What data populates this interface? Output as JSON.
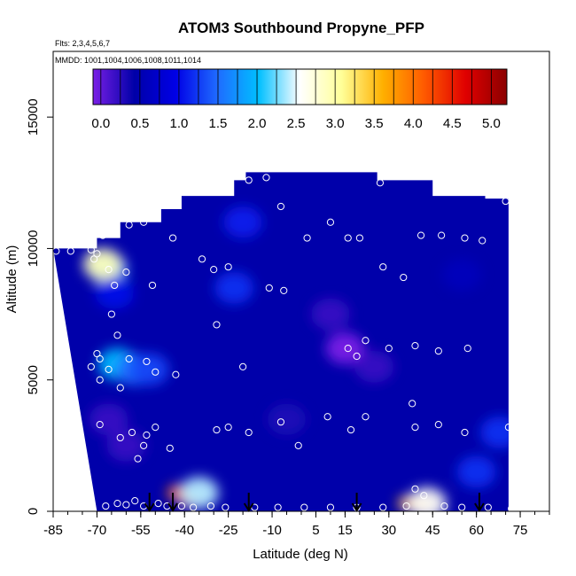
{
  "chart_data": {
    "type": "heatmap",
    "title": "ATOM3 Southbound Propyne_PFP",
    "subtitle_flights": "Flts: 2,3,4,5,6,7",
    "subtitle_dates": "MMDD: 1001,1004,1006,1008,1011,1014",
    "xlabel": "Latitude (deg N)",
    "ylabel": "Altitude (m)",
    "xlim": [
      -85,
      85
    ],
    "ylim": [
      0,
      17500
    ],
    "x_ticks": [
      "-85",
      "-70",
      "-55",
      "-40",
      "-25",
      "-10",
      "5",
      "15",
      "30",
      "45",
      "60",
      "75"
    ],
    "x_tick_values": [
      -85,
      -70,
      -55,
      -40,
      -25,
      -10,
      5,
      15,
      30,
      45,
      60,
      75
    ],
    "y_ticks": [
      "0",
      "5000",
      "10000",
      "15000"
    ],
    "y_tick_values": [
      0,
      5000,
      10000,
      15000
    ],
    "colorbar": {
      "ticks": [
        "0.0",
        "0.5",
        "1.0",
        "1.5",
        "2.0",
        "2.5",
        "3.0",
        "3.5",
        "4.0",
        "4.5",
        "5.0"
      ],
      "tick_values": [
        0.0,
        0.5,
        1.0,
        1.5,
        2.0,
        2.5,
        3.0,
        3.5,
        4.0,
        4.5,
        5.0
      ],
      "range": [
        -0.1,
        5.2
      ],
      "colors": [
        "#7a1fe6",
        "#0000a8",
        "#0000e6",
        "#1f6bff",
        "#00bfff",
        "#ffffff",
        "#ffff99",
        "#ffb000",
        "#ff5a00",
        "#e00000",
        "#8b0000"
      ]
    },
    "field_blobs": [
      {
        "lat": -66,
        "alt": 9200,
        "value": 1.7
      },
      {
        "lat": -68,
        "alt": 9400,
        "value": 2.9
      },
      {
        "lat": -64,
        "alt": 8300,
        "value": 1.0
      },
      {
        "lat": -63,
        "alt": 5600,
        "value": 2.0
      },
      {
        "lat": -57,
        "alt": 5400,
        "value": 1.5
      },
      {
        "lat": -52,
        "alt": 5400,
        "value": 1.3
      },
      {
        "lat": -66,
        "alt": 3500,
        "value": 0.2
      },
      {
        "lat": -60,
        "alt": 2500,
        "value": 0.2
      },
      {
        "lat": -42,
        "alt": 700,
        "value": 4.0
      },
      {
        "lat": -38,
        "alt": 400,
        "value": 4.6
      },
      {
        "lat": -35,
        "alt": 700,
        "value": 2.4
      },
      {
        "lat": 40,
        "alt": 250,
        "value": 4.9
      },
      {
        "lat": 37,
        "alt": 300,
        "value": 3.6
      },
      {
        "lat": 43,
        "alt": 300,
        "value": 2.6
      },
      {
        "lat": -23,
        "alt": 8500,
        "value": 1.2
      },
      {
        "lat": -20,
        "alt": 11000,
        "value": 1.1
      },
      {
        "lat": 15,
        "alt": 6200,
        "value": -0.1
      },
      {
        "lat": 10,
        "alt": 7500,
        "value": 0.2
      },
      {
        "lat": 25,
        "alt": 5500,
        "value": 0.2
      },
      {
        "lat": 60,
        "alt": 1500,
        "value": 1.2
      },
      {
        "lat": 68,
        "alt": 3000,
        "value": 1.2
      },
      {
        "lat": -5,
        "alt": 3500,
        "value": 0.3
      },
      {
        "lat": 55,
        "alt": 9000,
        "value": 0.6
      }
    ],
    "profile_arrows_lat": [
      -52,
      -44,
      -18,
      19,
      61
    ],
    "samples": [
      {
        "lat": -84,
        "alt": 9900
      },
      {
        "lat": -79,
        "alt": 9900
      },
      {
        "lat": -72,
        "alt": 9950
      },
      {
        "lat": -70,
        "alt": 9800
      },
      {
        "lat": -71,
        "alt": 9600
      },
      {
        "lat": -66,
        "alt": 9200
      },
      {
        "lat": -60,
        "alt": 9100
      },
      {
        "lat": -64,
        "alt": 8600
      },
      {
        "lat": -68,
        "alt": 10500
      },
      {
        "lat": -59,
        "alt": 10900
      },
      {
        "lat": -54,
        "alt": 11000
      },
      {
        "lat": -44,
        "alt": 10400
      },
      {
        "lat": -51,
        "alt": 8600
      },
      {
        "lat": -65,
        "alt": 7500
      },
      {
        "lat": -63,
        "alt": 6700
      },
      {
        "lat": -70,
        "alt": 6000
      },
      {
        "lat": -69,
        "alt": 5800
      },
      {
        "lat": -72,
        "alt": 5500
      },
      {
        "lat": -66,
        "alt": 5400
      },
      {
        "lat": -59,
        "alt": 5800
      },
      {
        "lat": -53,
        "alt": 5700
      },
      {
        "lat": -50,
        "alt": 5300
      },
      {
        "lat": -69,
        "alt": 5000
      },
      {
        "lat": -62,
        "alt": 4700
      },
      {
        "lat": -43,
        "alt": 5200
      },
      {
        "lat": -69,
        "alt": 3300
      },
      {
        "lat": -58,
        "alt": 3000
      },
      {
        "lat": -62,
        "alt": 2800
      },
      {
        "lat": -50,
        "alt": 3200
      },
      {
        "lat": -53,
        "alt": 2900
      },
      {
        "lat": -45,
        "alt": 2400
      },
      {
        "lat": -54,
        "alt": 2500
      },
      {
        "lat": -56,
        "alt": 2000
      },
      {
        "lat": -29,
        "alt": 3100
      },
      {
        "lat": -25,
        "alt": 3200
      },
      {
        "lat": -18,
        "alt": 3000
      },
      {
        "lat": -7,
        "alt": 3400
      },
      {
        "lat": -1,
        "alt": 2500
      },
      {
        "lat": 9,
        "alt": 3600
      },
      {
        "lat": 17,
        "alt": 3100
      },
      {
        "lat": 22,
        "alt": 3600
      },
      {
        "lat": 38,
        "alt": 4100
      },
      {
        "lat": 39,
        "alt": 3200
      },
      {
        "lat": 47,
        "alt": 3300
      },
      {
        "lat": 56,
        "alt": 3000
      },
      {
        "lat": 71,
        "alt": 3200
      },
      {
        "lat": -34,
        "alt": 9600
      },
      {
        "lat": -30,
        "alt": 9200
      },
      {
        "lat": -25,
        "alt": 9300
      },
      {
        "lat": -11,
        "alt": 8500
      },
      {
        "lat": -6,
        "alt": 8400
      },
      {
        "lat": -29,
        "alt": 7100
      },
      {
        "lat": -20,
        "alt": 5500
      },
      {
        "lat": 16,
        "alt": 6200
      },
      {
        "lat": 22,
        "alt": 6500
      },
      {
        "lat": 19,
        "alt": 5900
      },
      {
        "lat": 30,
        "alt": 6200
      },
      {
        "lat": 39,
        "alt": 6300
      },
      {
        "lat": 47,
        "alt": 6100
      },
      {
        "lat": 57,
        "alt": 6200
      },
      {
        "lat": 28,
        "alt": 9300
      },
      {
        "lat": 35,
        "alt": 8900
      },
      {
        "lat": -7,
        "alt": 11600
      },
      {
        "lat": 2,
        "alt": 10400
      },
      {
        "lat": 10,
        "alt": 11000
      },
      {
        "lat": 16,
        "alt": 10400
      },
      {
        "lat": 20,
        "alt": 10400
      },
      {
        "lat": 41,
        "alt": 10500
      },
      {
        "lat": 48,
        "alt": 10500
      },
      {
        "lat": 56,
        "alt": 10400
      },
      {
        "lat": 62,
        "alt": 10300
      },
      {
        "lat": 70,
        "alt": 11800
      },
      {
        "lat": 27,
        "alt": 12500
      },
      {
        "lat": -18,
        "alt": 12600
      },
      {
        "lat": -12,
        "alt": 12700
      },
      {
        "lat": -67,
        "alt": 200
      },
      {
        "lat": -63,
        "alt": 300
      },
      {
        "lat": -60,
        "alt": 250
      },
      {
        "lat": -57,
        "alt": 400
      },
      {
        "lat": -54,
        "alt": 200
      },
      {
        "lat": -49,
        "alt": 300
      },
      {
        "lat": -46,
        "alt": 200
      },
      {
        "lat": -41,
        "alt": 200
      },
      {
        "lat": -37,
        "alt": 150
      },
      {
        "lat": -31,
        "alt": 200
      },
      {
        "lat": -26,
        "alt": 150
      },
      {
        "lat": -16,
        "alt": 150
      },
      {
        "lat": -8,
        "alt": 150
      },
      {
        "lat": 1,
        "alt": 150
      },
      {
        "lat": 10,
        "alt": 150
      },
      {
        "lat": 19,
        "alt": 150
      },
      {
        "lat": 28,
        "alt": 150
      },
      {
        "lat": 36,
        "alt": 200
      },
      {
        "lat": 39,
        "alt": 850
      },
      {
        "lat": 42,
        "alt": 600
      },
      {
        "lat": 49,
        "alt": 200
      },
      {
        "lat": 55,
        "alt": 150
      },
      {
        "lat": 64,
        "alt": 150
      },
      {
        "lat": 72,
        "alt": 100
      }
    ]
  }
}
